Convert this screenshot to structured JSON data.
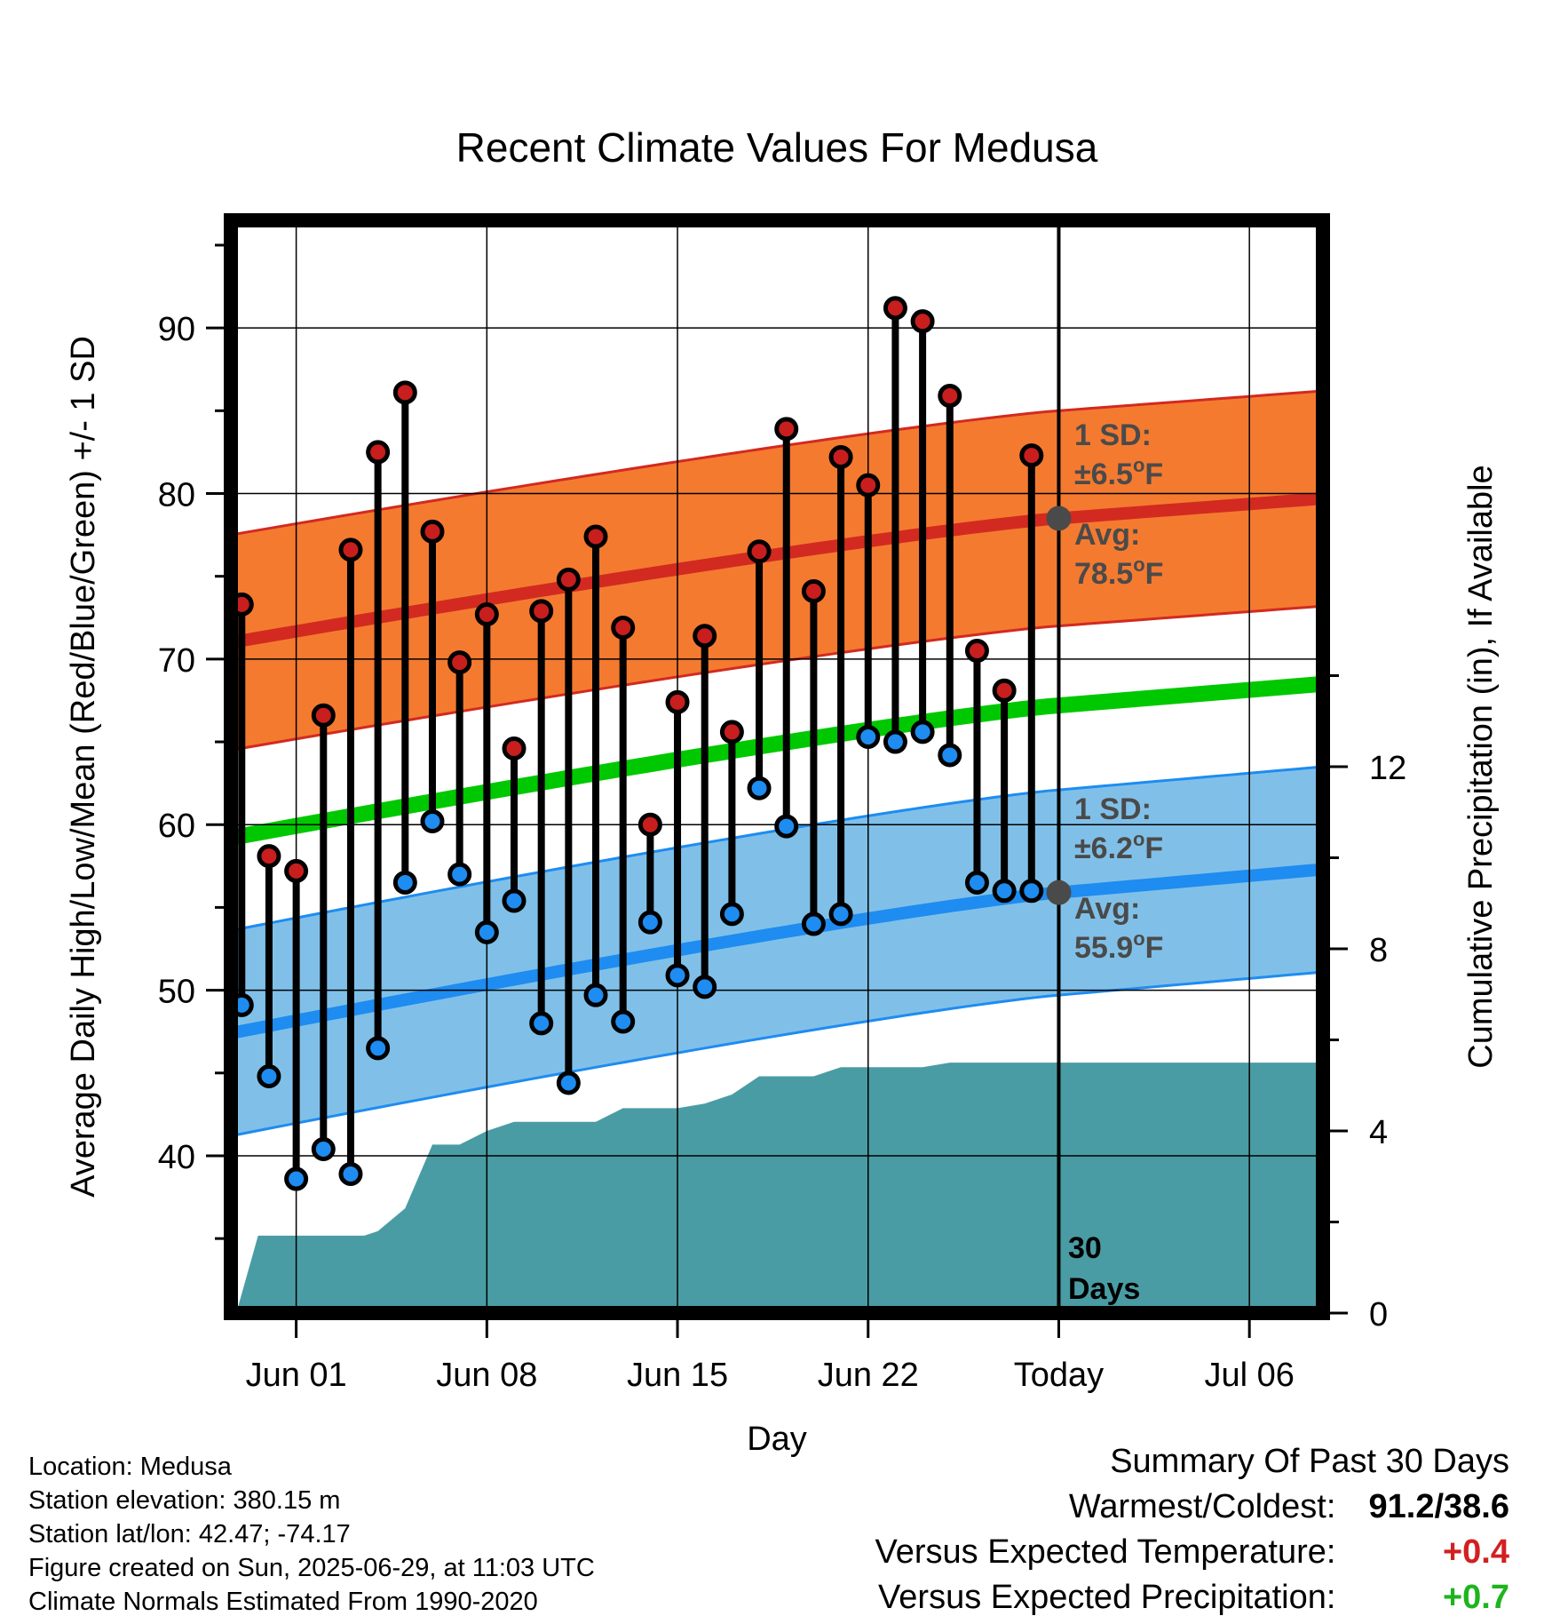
{
  "title": "Recent Climate Values For Medusa",
  "y_left_label": "Average Daily High/Low/Mean (Red/Blue/Green) +/- 1 SD",
  "y_right_label": "Cumulative Precipitation (in), If Available",
  "x_label": "Day",
  "x_ticks": [
    "Jun 01",
    "Jun 08",
    "Jun 15",
    "Jun 22",
    "Today",
    "Jul 06"
  ],
  "y_left_ticks": [
    "40",
    "50",
    "60",
    "70",
    "80",
    "90"
  ],
  "y_right_ticks": [
    "0",
    "4",
    "8",
    "12"
  ],
  "annotations": {
    "high_sd_label": "1 SD:",
    "high_sd_value": "±6.5",
    "high_avg_label": "Avg:",
    "high_avg_value": "78.5",
    "low_sd_label": "1 SD:",
    "low_sd_value": "±6.2",
    "low_avg_label": "Avg:",
    "low_avg_value": "55.9",
    "unit_degree": "o",
    "unit_F": "F",
    "days_count": "30",
    "days_label": "Days"
  },
  "metadata": {
    "location": "Location: Medusa",
    "elevation": "Station elevation: 380.15 m",
    "latlon": "Station lat/lon: 42.47; -74.17",
    "created": "Figure created on Sun, 2025-06-29, at 11:03 UTC",
    "normals": "Climate Normals Estimated From 1990-2020"
  },
  "summary": {
    "heading": "Summary Of Past 30 Days",
    "warm_cold_label": "Warmest/Coldest:",
    "warm_cold_value": "91.2/38.6",
    "temp_label": "Versus Expected Temperature:",
    "temp_value": "+0.4",
    "precip_label": "Versus Expected Precipitation:",
    "precip_value": "+0.7"
  },
  "colors": {
    "high_band": "#f47a30",
    "high_line": "#d22a20",
    "low_band": "#80c0e8",
    "low_line": "#1e8cf0",
    "mean_line": "#00c800",
    "precip": "#4a9ca4",
    "high_dot": "#c81e1e",
    "low_dot": "#1e8cf0",
    "today_dot": "#4a4a4a",
    "temp_anomaly": "#d22020",
    "precip_anomaly": "#1eb41e"
  },
  "chart_data": {
    "type": "line",
    "x_dates": [
      "May 30",
      "May 31",
      "Jun 01",
      "Jun 02",
      "Jun 03",
      "Jun 04",
      "Jun 05",
      "Jun 06",
      "Jun 07",
      "Jun 08",
      "Jun 09",
      "Jun 10",
      "Jun 11",
      "Jun 12",
      "Jun 13",
      "Jun 14",
      "Jun 15",
      "Jun 16",
      "Jun 17",
      "Jun 18",
      "Jun 19",
      "Jun 20",
      "Jun 21",
      "Jun 22",
      "Jun 23",
      "Jun 24",
      "Jun 25",
      "Jun 26",
      "Jun 27",
      "Jun 28"
    ],
    "x_range": [
      "May 29.6",
      "Jul 08.7"
    ],
    "today": "Jun 29",
    "ylim": [
      30.5,
      96.5
    ],
    "y2lim": [
      0,
      24
    ],
    "daily_high": [
      73.3,
      58.1,
      57.2,
      66.6,
      76.6,
      82.5,
      86.1,
      77.7,
      69.8,
      72.7,
      64.6,
      72.9,
      74.8,
      77.4,
      71.9,
      60.0,
      67.4,
      71.4,
      65.6,
      76.5,
      83.9,
      74.1,
      82.2,
      80.5,
      91.2,
      90.4,
      85.9,
      70.5,
      68.1,
      82.3
    ],
    "daily_low": [
      49.1,
      44.8,
      38.6,
      40.4,
      38.9,
      46.5,
      56.5,
      60.2,
      57.0,
      53.5,
      55.4,
      48.0,
      44.4,
      49.7,
      48.1,
      54.1,
      50.9,
      50.2,
      54.6,
      62.2,
      59.9,
      54.0,
      54.6,
      65.3,
      65.0,
      65.6,
      64.2,
      56.5,
      56.0,
      56.0
    ],
    "normal_high": {
      "start": 71.0,
      "today": 78.5,
      "end": 79.7
    },
    "normal_low": {
      "start": 47.4,
      "today": 55.9,
      "end": 57.3
    },
    "normal_mean": {
      "start": 59.2,
      "today": 67.2,
      "end": 68.5
    },
    "high_sd": 6.5,
    "low_sd": 6.2,
    "cumulative_precip_x": [
      "May 29.8",
      "May 30.6",
      "Jun 03.5",
      "Jun 04",
      "Jun 05",
      "Jun 06",
      "Jun 07",
      "Jun 08",
      "Jun 09",
      "Jun 10",
      "Jun 11",
      "Jun 12",
      "Jun 13",
      "Jun 14",
      "Jun 15",
      "Jun 16",
      "Jun 17",
      "Jun 18",
      "Jun 19",
      "Jun 20",
      "Jun 21",
      "Jun 22",
      "Jun 23",
      "Jun 24",
      "Jun 25",
      "Jun 26",
      "Jun 27",
      "Jun 28",
      "Jun 29",
      "Jul 08.7"
    ],
    "cumulative_precip": [
      0.0,
      1.7,
      1.7,
      1.8,
      2.3,
      3.7,
      3.7,
      4.0,
      4.2,
      4.2,
      4.2,
      4.2,
      4.5,
      4.5,
      4.5,
      4.6,
      4.8,
      5.2,
      5.2,
      5.2,
      5.4,
      5.4,
      5.4,
      5.4,
      5.5,
      5.5,
      5.5,
      5.5,
      5.5,
      5.5
    ],
    "grid": true
  }
}
